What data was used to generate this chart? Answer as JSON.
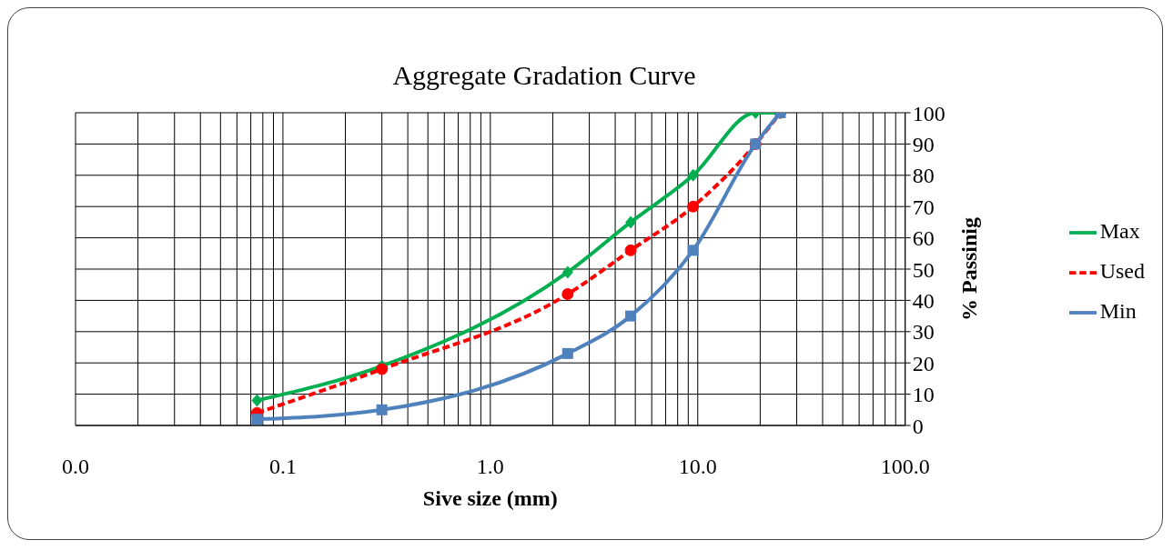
{
  "chart_data": {
    "type": "line",
    "title": "Aggregate Gradation Curve",
    "xlabel": "Sive size (mm)",
    "ylabel": "% Passinig",
    "x": [
      0.075,
      0.3,
      2.36,
      4.75,
      9.5,
      19,
      25
    ],
    "log": "x",
    "grid": true,
    "legend": "right",
    "xlim": [
      0.01,
      100
    ],
    "xticks": [
      {
        "value": 0.01,
        "label": "0.0"
      },
      {
        "value": 0.02,
        "label": null
      },
      {
        "value": 0.03,
        "label": null
      },
      {
        "value": 0.04,
        "label": null
      },
      {
        "value": 0.05,
        "label": null
      },
      {
        "value": 0.06,
        "label": null
      },
      {
        "value": 0.07,
        "label": null
      },
      {
        "value": 0.08,
        "label": null
      },
      {
        "value": 0.09,
        "label": null
      },
      0.1,
      {
        "value": 0.2,
        "label": null
      },
      {
        "value": 0.3,
        "label": null
      },
      {
        "value": 0.4,
        "label": null
      },
      {
        "value": 0.5,
        "label": null
      },
      {
        "value": 0.6,
        "label": null
      },
      {
        "value": 0.7,
        "label": null
      },
      {
        "value": 0.8,
        "label": null
      },
      {
        "value": 0.9,
        "label": null
      },
      {
        "value": 1,
        "label": "1.0"
      },
      {
        "value": 2,
        "label": null
      },
      {
        "value": 3,
        "label": null
      },
      {
        "value": 4,
        "label": null
      },
      {
        "value": 5,
        "label": null
      },
      {
        "value": 6,
        "label": null
      },
      {
        "value": 7,
        "label": null
      },
      {
        "value": 8,
        "label": null
      },
      {
        "value": 9,
        "label": null
      },
      {
        "value": 10,
        "label": "10.0"
      },
      {
        "value": 20,
        "label": null
      },
      {
        "value": 30,
        "label": null
      },
      {
        "value": 40,
        "label": null
      },
      {
        "value": 50,
        "label": null
      },
      {
        "value": 60,
        "label": null
      },
      {
        "value": 70,
        "label": null
      },
      {
        "value": 80,
        "label": null
      },
      {
        "value": 90,
        "label": null
      },
      {
        "value": 100,
        "label": "100.0"
      }
    ],
    "ylim": [
      0,
      100
    ],
    "yticks": [
      0,
      10,
      20,
      30,
      40,
      50,
      60,
      70,
      80,
      90,
      100
    ],
    "series": [
      {
        "name": "Max",
        "color": "#00b050",
        "marker": "diamond",
        "line_style": "solid",
        "values": [
          8,
          19,
          49,
          65,
          80,
          100,
          100
        ]
      },
      {
        "name": "Used",
        "color": "#ff0000",
        "marker": "circle",
        "line_style": "dashed",
        "values": [
          4,
          18,
          42,
          56,
          70,
          90,
          100
        ]
      },
      {
        "name": "Min",
        "color": "#4f81bd",
        "marker": "square",
        "line_style": "solid",
        "values": [
          2,
          5,
          23,
          35,
          56,
          90,
          100
        ]
      }
    ]
  }
}
